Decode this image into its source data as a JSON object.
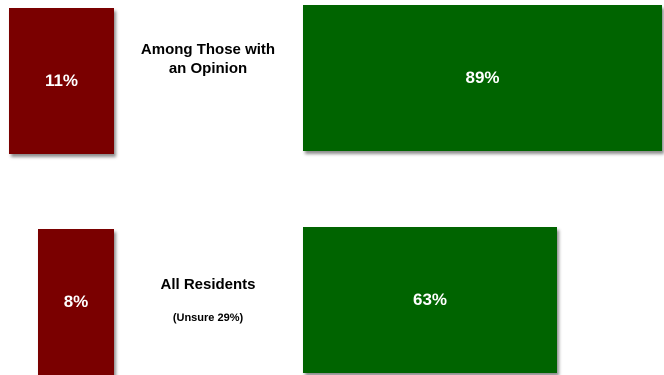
{
  "chart_data": {
    "type": "bar",
    "orientation": "horizontal",
    "colors": {
      "negative": "#7a0000",
      "positive": "#006400"
    },
    "rows": [
      {
        "label": "Among Those with an Opinion",
        "sublabel": "",
        "negative": 11,
        "positive": 89,
        "negative_label": "11%",
        "positive_label": "89%"
      },
      {
        "label": "All Residents",
        "sublabel": "(Unsure 29%)",
        "negative": 8,
        "positive": 63,
        "negative_label": "8%",
        "positive_label": "63%"
      }
    ]
  }
}
